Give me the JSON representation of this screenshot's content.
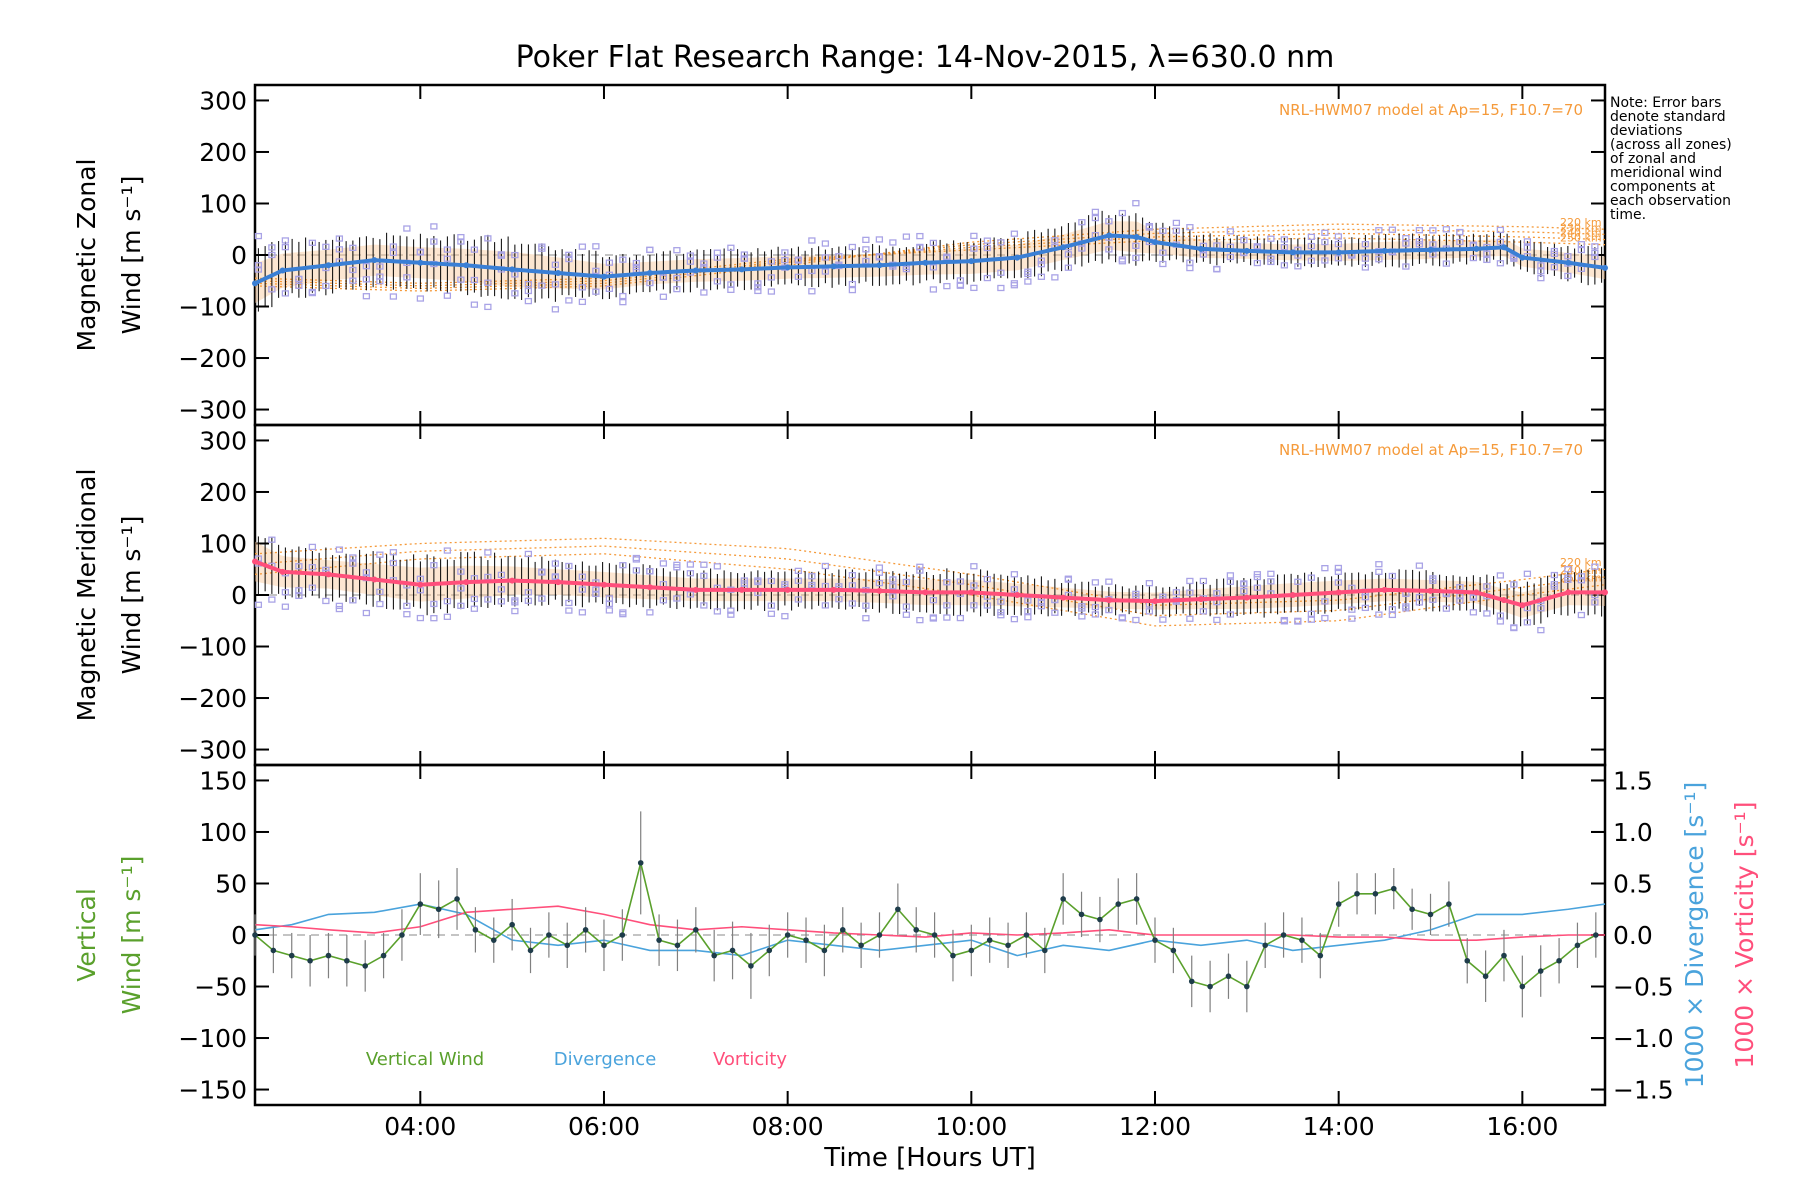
{
  "title": "Poker Flat Research Range: 14-Nov-2015, λ=630.0 nm",
  "note_lines": [
    "Note: Error bars",
    "denote standard",
    "deviations",
    "(across all zones)",
    "of zonal and",
    "meridional wind",
    "components at",
    "each observation",
    "time."
  ],
  "colors": {
    "zonal_mean": "#3a7fd5",
    "meridional_mean": "#ff4f7b",
    "zone_markers": "#a9a3e6",
    "errorbars": "#000000",
    "model": "#f59a3a",
    "model_shade": "#f9c89a",
    "vertical_wind": "#5aa02c",
    "vertical_points": "#1e3c4a",
    "divergence": "#4aa3dc",
    "vorticity": "#ff4f7b",
    "vertical_err": "#808080"
  },
  "chart_data": [
    {
      "type": "scatter",
      "panel": "zonal",
      "ylabel_lines": [
        "Magnetic Zonal",
        "Wind [m s⁻¹]"
      ],
      "xlim": [
        2.2,
        16.9
      ],
      "ylim": [
        -330,
        330
      ],
      "yticks": [
        300,
        200,
        100,
        0,
        -100,
        -200,
        -300
      ],
      "model_label": "NRL-HWM07 model at Ap=15, F10.7=70",
      "model_heights": [
        "220 km",
        "230 km",
        "240 km",
        "250 km"
      ],
      "series": [
        {
          "role": "mean",
          "x": [
            2.2,
            2.5,
            3.0,
            3.5,
            4.0,
            4.5,
            5.0,
            5.5,
            6.0,
            6.5,
            7.0,
            7.5,
            8.0,
            8.5,
            9.0,
            9.5,
            10.0,
            10.5,
            11.0,
            11.5,
            11.8,
            12.0,
            12.5,
            13.0,
            13.5,
            14.0,
            14.5,
            15.0,
            15.5,
            15.8,
            16.0,
            16.5,
            16.9
          ],
          "y": [
            -55,
            -30,
            -20,
            -10,
            -15,
            -20,
            -28,
            -35,
            -42,
            -35,
            -30,
            -28,
            -24,
            -22,
            -20,
            -15,
            -12,
            -5,
            15,
            38,
            35,
            25,
            12,
            8,
            5,
            5,
            8,
            10,
            12,
            15,
            -5,
            -15,
            -25
          ],
          "spread": [
            70,
            60,
            55,
            55,
            55,
            58,
            62,
            55,
            45,
            40,
            40,
            40,
            40,
            40,
            40,
            42,
            45,
            45,
            45,
            50,
            55,
            40,
            32,
            28,
            28,
            30,
            32,
            32,
            30,
            30,
            32,
            35,
            40
          ]
        }
      ],
      "model_curves": [
        {
          "height": "220 km",
          "x": [
            2.2,
            4.0,
            6.0,
            8.0,
            10.0,
            12.0,
            14.0,
            16.0,
            16.9
          ],
          "y": [
            -60,
            -70,
            -60,
            -20,
            25,
            50,
            60,
            55,
            50
          ]
        },
        {
          "height": "230 km",
          "x": [
            2.2,
            4.0,
            6.0,
            8.0,
            10.0,
            12.0,
            14.0,
            16.0,
            16.9
          ],
          "y": [
            -55,
            -65,
            -55,
            -15,
            20,
            42,
            50,
            45,
            40
          ]
        },
        {
          "height": "240 km",
          "x": [
            2.2,
            4.0,
            6.0,
            8.0,
            10.0,
            12.0,
            14.0,
            16.0,
            16.9
          ],
          "y": [
            -50,
            -60,
            -50,
            -12,
            15,
            35,
            42,
            35,
            30
          ]
        },
        {
          "height": "250 km",
          "x": [
            2.2,
            4.0,
            6.0,
            8.0,
            10.0,
            12.0,
            14.0,
            16.0,
            16.9
          ],
          "y": [
            -45,
            -55,
            -45,
            -8,
            10,
            28,
            33,
            25,
            20
          ]
        }
      ]
    },
    {
      "type": "scatter",
      "panel": "meridional",
      "ylabel_lines": [
        "Magnetic Meridional",
        "Wind [m s⁻¹]"
      ],
      "xlim": [
        2.2,
        16.9
      ],
      "ylim": [
        -330,
        330
      ],
      "yticks": [
        300,
        200,
        100,
        0,
        -100,
        -200,
        -300
      ],
      "model_label": "NRL-HWM07 model at Ap=15, F10.7=70",
      "model_heights": [
        "220 km",
        "240 km",
        "250 km"
      ],
      "series": [
        {
          "role": "mean",
          "x": [
            2.2,
            2.5,
            3.0,
            3.5,
            4.0,
            4.5,
            5.0,
            5.5,
            6.0,
            6.5,
            7.0,
            7.5,
            8.0,
            8.5,
            9.0,
            9.5,
            10.0,
            10.5,
            11.0,
            11.5,
            12.0,
            12.5,
            13.0,
            13.5,
            14.0,
            14.5,
            15.0,
            15.5,
            15.8,
            16.0,
            16.5,
            16.9
          ],
          "y": [
            65,
            45,
            40,
            30,
            20,
            25,
            28,
            25,
            20,
            15,
            10,
            10,
            10,
            10,
            8,
            5,
            5,
            0,
            -5,
            -10,
            -12,
            -8,
            -5,
            0,
            5,
            10,
            8,
            5,
            -10,
            -20,
            5,
            5
          ],
          "spread": [
            70,
            55,
            50,
            55,
            60,
            58,
            50,
            45,
            45,
            42,
            40,
            40,
            40,
            40,
            42,
            45,
            45,
            40,
            35,
            30,
            30,
            35,
            40,
            42,
            42,
            40,
            38,
            38,
            40,
            45,
            45,
            48
          ]
        }
      ],
      "model_curves": [
        {
          "height": "220 km",
          "x": [
            2.2,
            4.0,
            6.0,
            8.0,
            10.0,
            12.0,
            14.0,
            16.0,
            16.9
          ],
          "y": [
            80,
            100,
            110,
            90,
            40,
            -20,
            -10,
            30,
            50
          ]
        },
        {
          "height": "240 km",
          "x": [
            2.2,
            4.0,
            6.0,
            8.0,
            10.0,
            12.0,
            14.0,
            16.0,
            16.9
          ],
          "y": [
            60,
            85,
            95,
            70,
            20,
            -40,
            -30,
            15,
            35
          ]
        },
        {
          "height": "250 km",
          "x": [
            2.2,
            4.0,
            6.0,
            8.0,
            10.0,
            12.0,
            14.0,
            16.0,
            16.9
          ],
          "y": [
            40,
            70,
            80,
            50,
            0,
            -60,
            -50,
            0,
            20
          ]
        }
      ]
    },
    {
      "type": "line",
      "panel": "vertical",
      "ylabel_lines": [
        "Vertical",
        "Wind [m s⁻¹]"
      ],
      "ylabel_right_1": "1000 × Divergence [s⁻¹]",
      "ylabel_right_2": "1000 × Vorticity [s⁻¹]",
      "xlabel": "Time [Hours UT]",
      "xlim": [
        2.2,
        16.9
      ],
      "xticks": [
        4,
        6,
        8,
        10,
        12,
        14,
        16
      ],
      "xtick_labels": [
        "04:00",
        "06:00",
        "08:00",
        "10:00",
        "12:00",
        "14:00",
        "16:00"
      ],
      "ylim": [
        -165,
        165
      ],
      "yticks": [
        150,
        100,
        50,
        0,
        -50,
        -100,
        -150
      ],
      "y2lim": [
        -1.65,
        1.65
      ],
      "y2ticks": [
        1.5,
        1.0,
        0.5,
        0.0,
        -0.5,
        -1.0,
        -1.5
      ],
      "legend": [
        "Vertical Wind",
        "Divergence",
        "Vorticity"
      ],
      "series": [
        {
          "name": "Vertical Wind",
          "x": [
            2.2,
            2.4,
            2.6,
            2.8,
            3.0,
            3.2,
            3.4,
            3.6,
            3.8,
            4.0,
            4.2,
            4.4,
            4.6,
            4.8,
            5.0,
            5.2,
            5.4,
            5.6,
            5.8,
            6.0,
            6.2,
            6.4,
            6.6,
            6.8,
            7.0,
            7.2,
            7.4,
            7.6,
            7.8,
            8.0,
            8.2,
            8.4,
            8.6,
            8.8,
            9.0,
            9.2,
            9.4,
            9.6,
            9.8,
            10.0,
            10.2,
            10.4,
            10.6,
            10.8,
            11.0,
            11.2,
            11.4,
            11.6,
            11.8,
            12.0,
            12.2,
            12.4,
            12.6,
            12.8,
            13.0,
            13.2,
            13.4,
            13.6,
            13.8,
            14.0,
            14.2,
            14.4,
            14.6,
            14.8,
            15.0,
            15.2,
            15.4,
            15.6,
            15.8,
            16.0,
            16.2,
            16.4,
            16.6,
            16.8
          ],
          "y": [
            0,
            -15,
            -20,
            -25,
            -20,
            -25,
            -30,
            -20,
            0,
            30,
            25,
            35,
            5,
            -5,
            10,
            -15,
            0,
            -10,
            5,
            -10,
            0,
            70,
            -5,
            -10,
            5,
            -20,
            -15,
            -30,
            -15,
            0,
            -5,
            -15,
            5,
            -10,
            0,
            25,
            5,
            0,
            -20,
            -15,
            -5,
            -10,
            0,
            -15,
            35,
            20,
            15,
            30,
            35,
            -5,
            -15,
            -45,
            -50,
            -40,
            -50,
            -10,
            0,
            -5,
            -20,
            30,
            40,
            40,
            45,
            25,
            20,
            30,
            -25,
            -40,
            -20,
            -50,
            -35,
            -25,
            -10,
            0
          ],
          "err": [
            20,
            22,
            22,
            25,
            22,
            25,
            25,
            22,
            25,
            30,
            28,
            30,
            22,
            22,
            25,
            22,
            22,
            22,
            22,
            25,
            25,
            50,
            25,
            25,
            22,
            25,
            28,
            32,
            25,
            22,
            22,
            25,
            22,
            22,
            22,
            25,
            22,
            22,
            25,
            25,
            22,
            22,
            22,
            22,
            25,
            22,
            22,
            25,
            25,
            22,
            22,
            25,
            25,
            22,
            25,
            22,
            22,
            22,
            22,
            22,
            20,
            20,
            20,
            20,
            20,
            22,
            22,
            25,
            25,
            30,
            25,
            22,
            22,
            22
          ]
        },
        {
          "name": "Divergence",
          "x": [
            2.2,
            2.6,
            3.0,
            3.5,
            4.0,
            4.5,
            5.0,
            5.5,
            6.0,
            6.5,
            7.0,
            7.5,
            8.0,
            8.5,
            9.0,
            9.5,
            10.0,
            10.5,
            11.0,
            11.5,
            12.0,
            12.5,
            13.0,
            13.5,
            14.0,
            14.5,
            15.0,
            15.5,
            16.0,
            16.5,
            16.9
          ],
          "y": [
            0.05,
            0.1,
            0.2,
            0.22,
            0.3,
            0.2,
            -0.05,
            -0.1,
            -0.05,
            -0.15,
            -0.15,
            -0.2,
            -0.05,
            -0.1,
            -0.15,
            -0.1,
            -0.05,
            -0.2,
            -0.1,
            -0.15,
            -0.05,
            -0.1,
            -0.05,
            -0.15,
            -0.1,
            -0.05,
            0.05,
            0.2,
            0.2,
            0.25,
            0.3
          ]
        },
        {
          "name": "Vorticity",
          "x": [
            2.2,
            2.6,
            3.0,
            3.5,
            4.0,
            4.5,
            5.0,
            5.5,
            6.0,
            6.5,
            7.0,
            7.5,
            8.0,
            8.5,
            9.0,
            9.5,
            10.0,
            10.5,
            11.0,
            11.5,
            12.0,
            12.5,
            13.0,
            13.5,
            14.0,
            14.5,
            15.0,
            15.5,
            16.0,
            16.5,
            16.9
          ],
          "y": [
            0.1,
            0.08,
            0.05,
            0.02,
            0.08,
            0.22,
            0.25,
            0.28,
            0.2,
            0.1,
            0.05,
            0.08,
            0.05,
            0.02,
            0.0,
            -0.02,
            0.02,
            0.0,
            0.02,
            0.05,
            0.0,
            0.0,
            0.0,
            0.0,
            -0.02,
            -0.02,
            -0.05,
            -0.05,
            -0.02,
            0.0,
            0.0
          ]
        }
      ]
    }
  ]
}
